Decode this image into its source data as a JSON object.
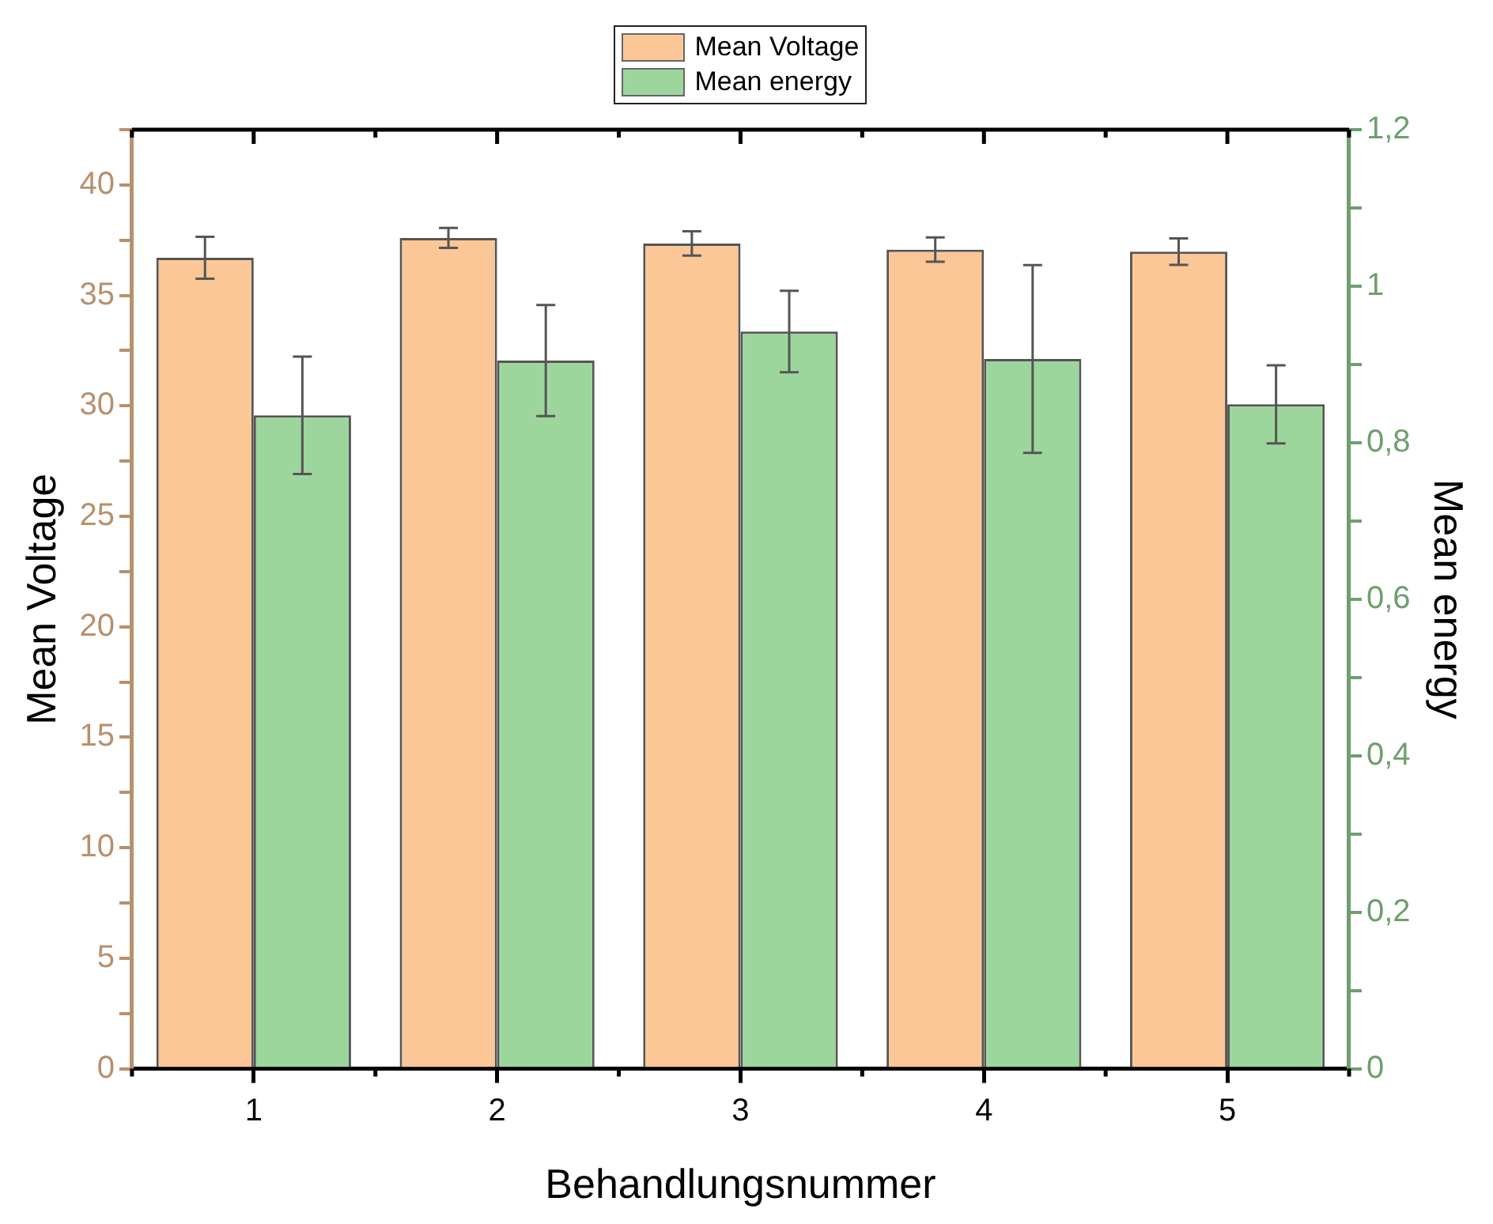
{
  "chart_data": {
    "type": "bar",
    "xlabel": "Behandlungsnummer",
    "ylabel": "Mean Voltage",
    "y2label": "Mean energy",
    "categories": [
      "1",
      "2",
      "3",
      "4",
      "5"
    ],
    "series": [
      {
        "name": "Mean Voltage",
        "color": "#fbc797",
        "values": [
          36.7,
          37.6,
          37.35,
          37.07,
          36.98
        ],
        "errors": [
          0.95,
          0.45,
          0.55,
          0.55,
          0.6
        ]
      },
      {
        "name": "Mean energy",
        "color": "#9dd69d",
        "axis": "y2",
        "values": [
          0.835,
          0.905,
          0.942,
          0.907,
          0.849
        ],
        "errors": [
          0.075,
          0.071,
          0.052,
          0.12,
          0.05
        ]
      }
    ],
    "ylim": [
      0,
      42.5
    ],
    "yticks": [
      0,
      {
        "value": 2.5,
        "label": null
      },
      5,
      {
        "value": 7.5,
        "label": null
      },
      10,
      {
        "value": 12.5,
        "label": null
      },
      15,
      {
        "value": 17.5,
        "label": null
      },
      20,
      {
        "value": 22.5,
        "label": null
      },
      25,
      {
        "value": 27.5,
        "label": null
      },
      30,
      {
        "value": 32.5,
        "label": null
      },
      35,
      {
        "value": 37.5,
        "label": null
      },
      40,
      {
        "value": 42.5,
        "label": null
      }
    ],
    "y2lim": [
      0,
      1.2
    ],
    "y2ticks": [
      0,
      {
        "value": 0.1,
        "label": null
      },
      {
        "value": 0.2,
        "label": "0,2"
      },
      {
        "value": 0.3,
        "label": null
      },
      {
        "value": 0.4,
        "label": "0,4"
      },
      {
        "value": 0.5,
        "label": null
      },
      {
        "value": 0.6,
        "label": "0,6"
      },
      {
        "value": 0.7,
        "label": null
      },
      {
        "value": 0.8,
        "label": "0,8"
      },
      {
        "value": 0.9,
        "label": null
      },
      1,
      {
        "value": 1.1,
        "label": null
      },
      {
        "value": 1.2,
        "label": "1,2"
      }
    ],
    "grid": false,
    "legend": "top"
  }
}
